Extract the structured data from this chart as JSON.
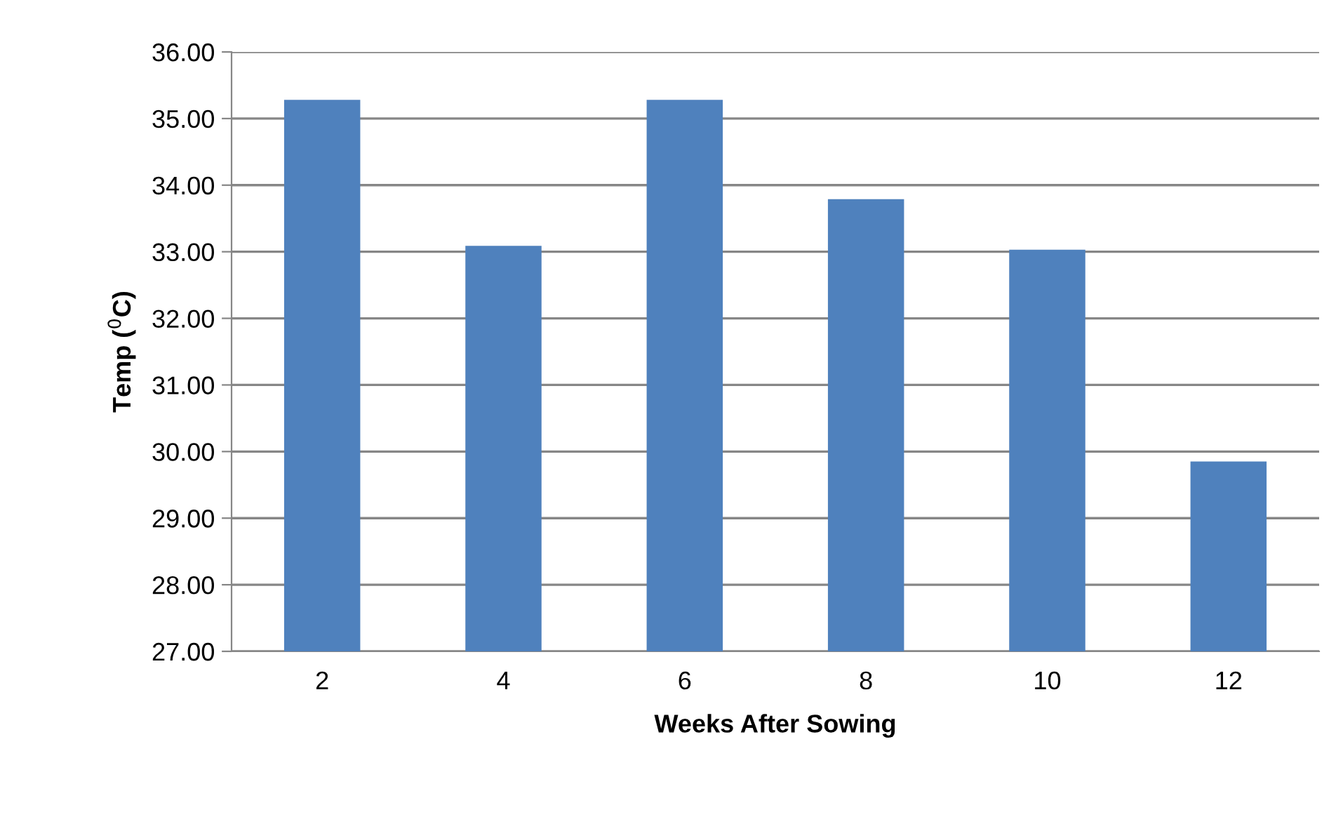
{
  "chart_data": {
    "type": "bar",
    "xlabel": "Weeks After Sowing",
    "ylabel": "Temp ($^{0}$C)",
    "categories": [
      "2",
      "4",
      "6",
      "8",
      "10",
      "12"
    ],
    "values": [
      35.28,
      33.09,
      35.28,
      33.79,
      33.03,
      29.85
    ],
    "color": "#4f81bd",
    "ylim": [
      27,
      36
    ],
    "yticks": [
      {
        "value": 27,
        "label": "27.00"
      },
      {
        "value": 28,
        "label": "28.00"
      },
      {
        "value": 29,
        "label": "29.00"
      },
      {
        "value": 30,
        "label": "30.00"
      },
      {
        "value": 31,
        "label": "31.00"
      },
      {
        "value": 32,
        "label": "32.00"
      },
      {
        "value": 33,
        "label": "33.00"
      },
      {
        "value": 34,
        "label": "34.00"
      },
      {
        "value": 35,
        "label": "35.00"
      },
      {
        "value": 36,
        "label": "36.00"
      }
    ],
    "grid": "y"
  }
}
